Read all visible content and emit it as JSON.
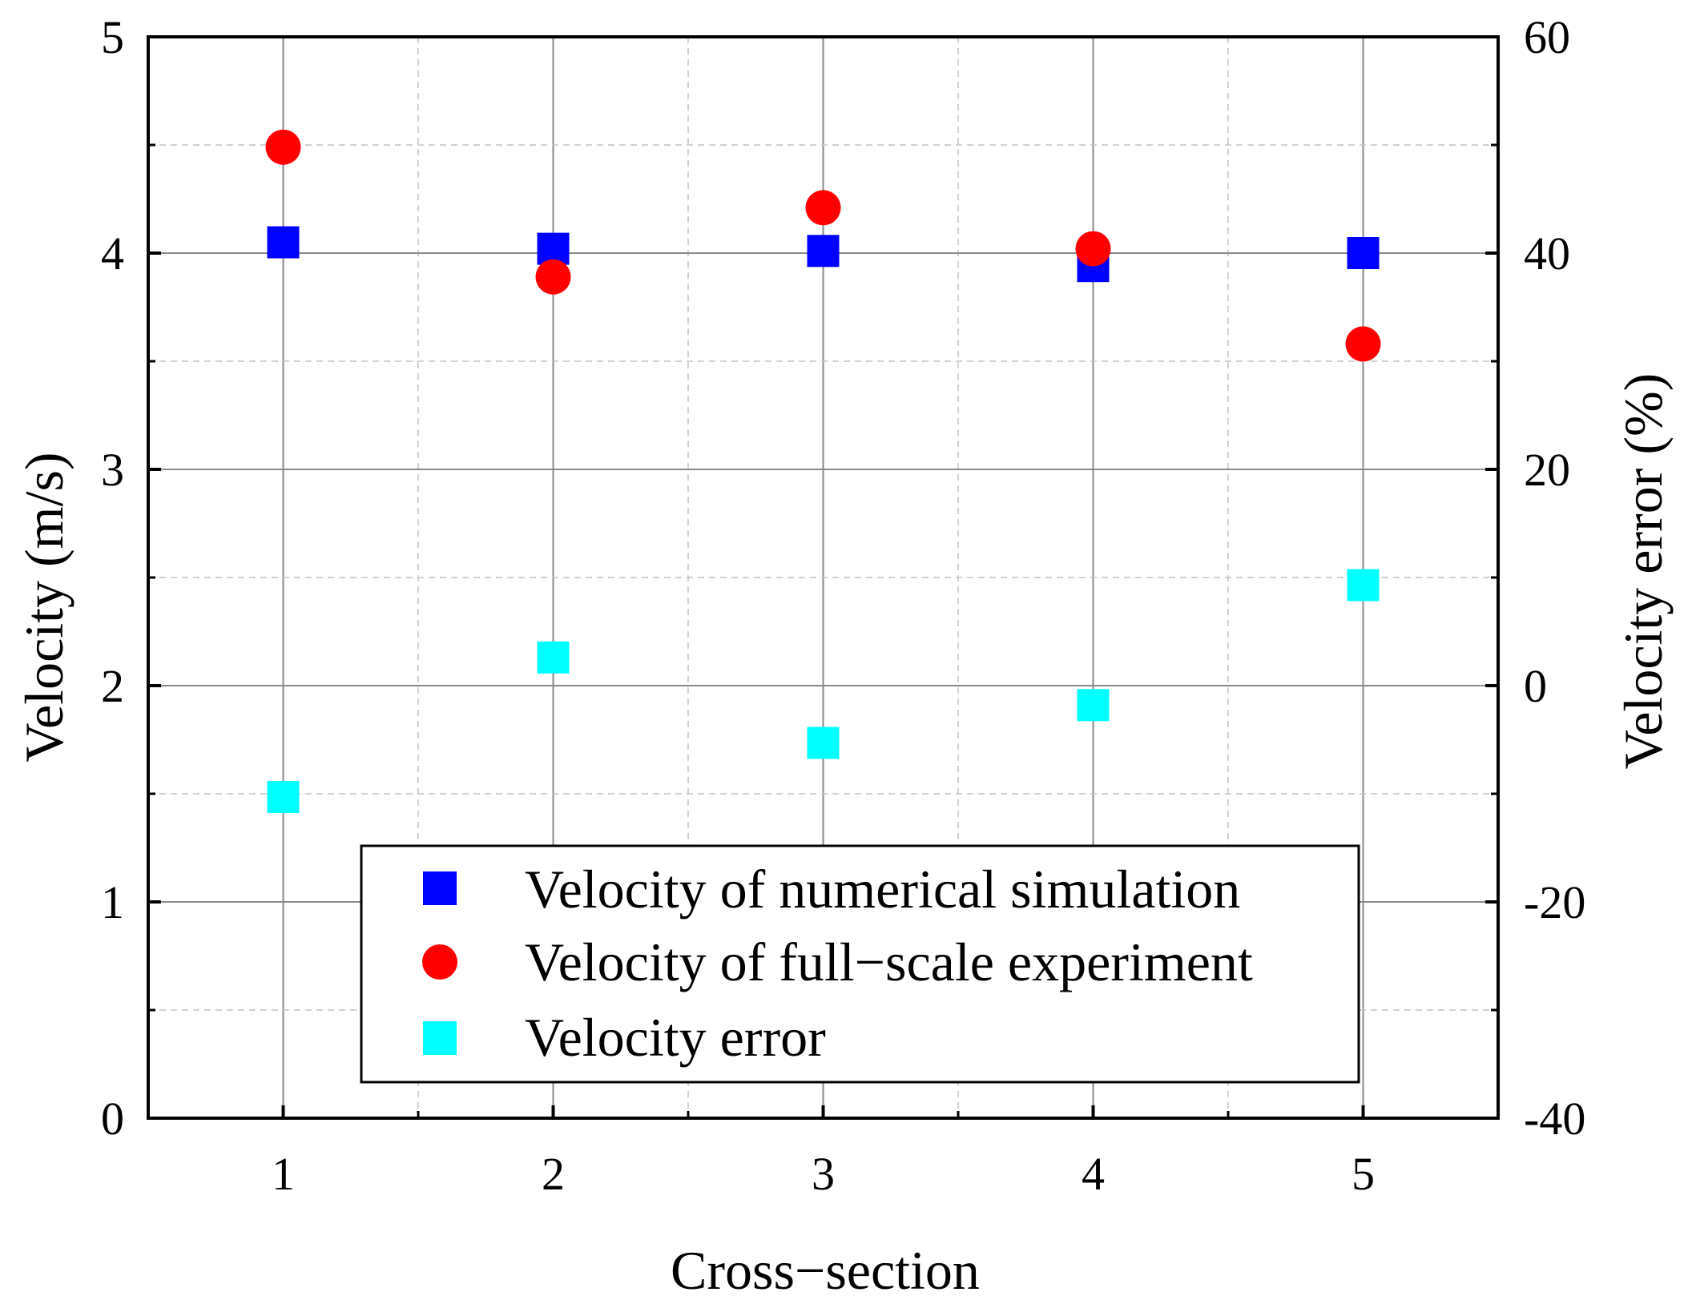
{
  "chart_data": {
    "type": "scatter",
    "title": "",
    "xlabel": "Cross−section",
    "ylabel_left": "Velocity (m/s)",
    "ylabel_right": "Velocity error (%)",
    "x": [
      1,
      2,
      3,
      4,
      5
    ],
    "xlim": [
      0.5,
      5.5
    ],
    "ylim_left": [
      0,
      5
    ],
    "ylim_right": [
      -40,
      60
    ],
    "x_ticks": [
      "1",
      "2",
      "3",
      "4",
      "5"
    ],
    "y_left_ticks": [
      "0",
      "1",
      "2",
      "3",
      "4",
      "5"
    ],
    "y_right_ticks": [
      "-40",
      "-20",
      "0",
      "20",
      "40",
      "60"
    ],
    "grid": true,
    "legend_position": "bottom-center",
    "series": [
      {
        "name": "Velocity of numerical simulation",
        "axis": "left",
        "marker": "square",
        "color": "#0000ff",
        "values": [
          4.05,
          4.02,
          4.01,
          3.94,
          4.0
        ]
      },
      {
        "name": "Velocity of full−scale experiment",
        "axis": "left",
        "marker": "circle",
        "color": "#ff0000",
        "values": [
          4.49,
          3.89,
          4.21,
          4.02,
          3.58
        ]
      },
      {
        "name": "Velocity error",
        "axis": "right",
        "marker": "square",
        "color": "#00ffff",
        "values": [
          -10.3,
          2.6,
          -5.3,
          -1.8,
          9.3
        ]
      }
    ]
  }
}
